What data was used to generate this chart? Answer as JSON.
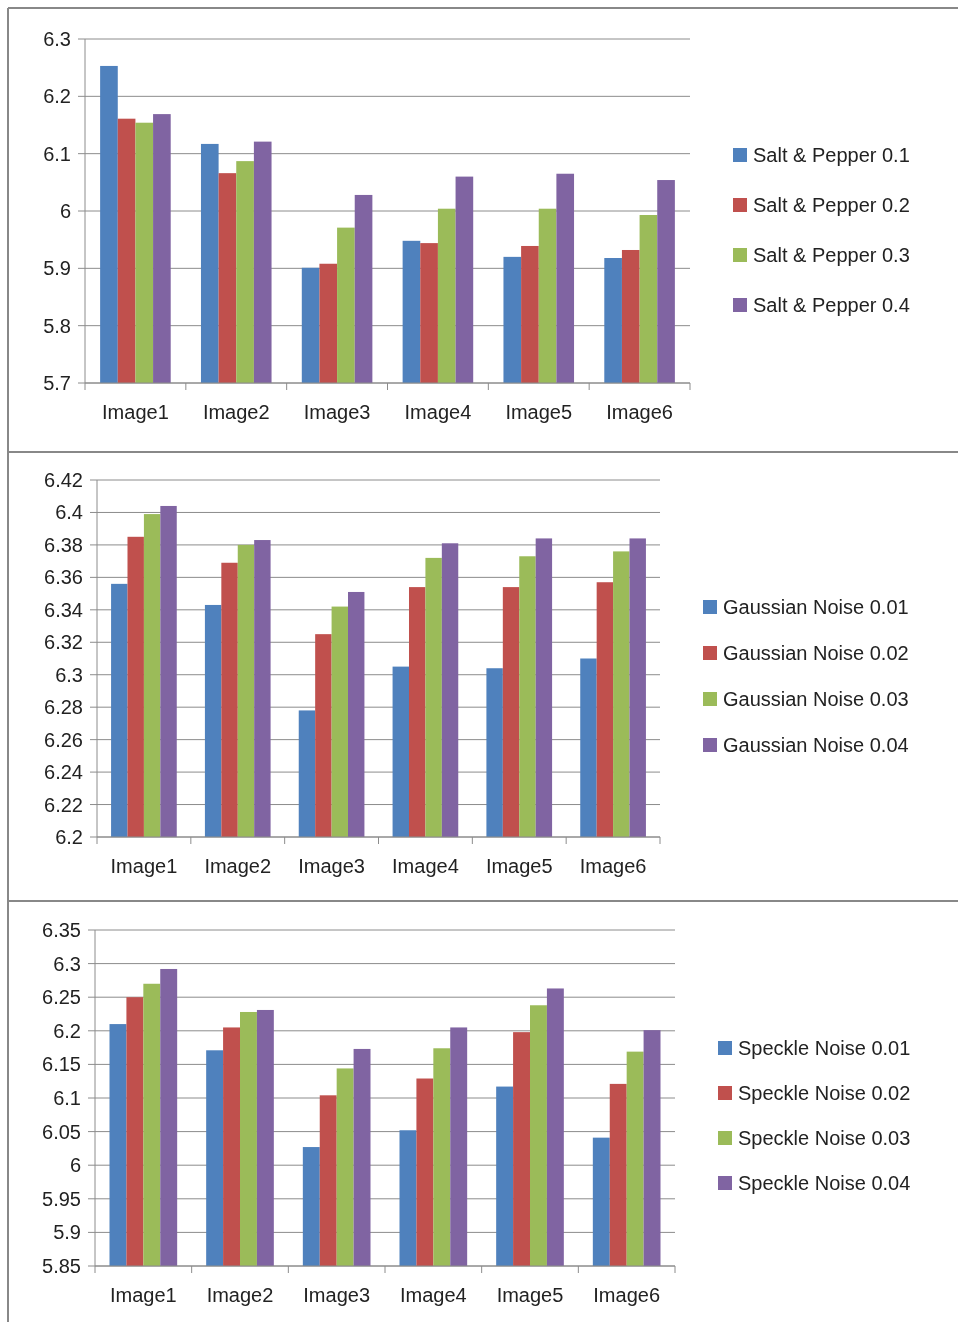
{
  "chart_data": [
    {
      "type": "bar",
      "categories": [
        "Image1",
        "Image2",
        "Image3",
        "Image4",
        "Image5",
        "Image6"
      ],
      "ylim": [
        5.7,
        6.3
      ],
      "yticks": [
        5.7,
        5.8,
        5.9,
        6,
        6.1,
        6.2,
        6.3
      ],
      "grid": "y",
      "legend": "right",
      "series": [
        {
          "name": "Salt & Pepper 0.1",
          "color": "#4f81bd",
          "values": [
            6.253,
            6.117,
            5.901,
            5.948,
            5.92,
            5.918
          ]
        },
        {
          "name": "Salt & Pepper 0.2",
          "color": "#c0504d",
          "values": [
            6.161,
            6.066,
            5.908,
            5.944,
            5.939,
            5.932
          ]
        },
        {
          "name": "Salt & Pepper 0.3",
          "color": "#9bbb59",
          "values": [
            6.154,
            6.087,
            5.971,
            6.004,
            6.004,
            5.993
          ]
        },
        {
          "name": "Salt & Pepper 0.4",
          "color": "#8064a2",
          "values": [
            6.169,
            6.121,
            6.028,
            6.06,
            6.065,
            6.054
          ]
        }
      ]
    },
    {
      "type": "bar",
      "categories": [
        "Image1",
        "Image2",
        "Image3",
        "Image4",
        "Image5",
        "Image6"
      ],
      "ylim": [
        6.2,
        6.42
      ],
      "yticks": [
        6.2,
        6.22,
        6.24,
        6.26,
        6.28,
        6.3,
        6.32,
        6.34,
        6.36,
        6.38,
        6.4,
        6.42
      ],
      "grid": "y",
      "legend": "right",
      "series": [
        {
          "name": "Gaussian Noise 0.01",
          "color": "#4f81bd",
          "values": [
            6.356,
            6.343,
            6.278,
            6.305,
            6.304,
            6.31
          ]
        },
        {
          "name": "Gaussian Noise 0.02",
          "color": "#c0504d",
          "values": [
            6.385,
            6.369,
            6.325,
            6.354,
            6.354,
            6.357
          ]
        },
        {
          "name": "Gaussian Noise 0.03",
          "color": "#9bbb59",
          "values": [
            6.399,
            6.38,
            6.342,
            6.372,
            6.373,
            6.376
          ]
        },
        {
          "name": "Gaussian Noise 0.04",
          "color": "#8064a2",
          "values": [
            6.404,
            6.383,
            6.351,
            6.381,
            6.384,
            6.384
          ]
        }
      ]
    },
    {
      "type": "bar",
      "categories": [
        "Image1",
        "Image2",
        "Image3",
        "Image4",
        "Image5",
        "Image6"
      ],
      "ylim": [
        5.85,
        6.35
      ],
      "yticks": [
        5.85,
        5.9,
        5.95,
        6,
        6.05,
        6.1,
        6.15,
        6.2,
        6.25,
        6.3,
        6.35
      ],
      "grid": "y",
      "legend": "right",
      "series": [
        {
          "name": "Speckle Noise 0.01",
          "color": "#4f81bd",
          "values": [
            6.21,
            6.171,
            6.027,
            6.052,
            6.117,
            6.041
          ]
        },
        {
          "name": "Speckle Noise 0.02",
          "color": "#c0504d",
          "values": [
            6.25,
            6.205,
            6.104,
            6.129,
            6.198,
            6.121
          ]
        },
        {
          "name": "Speckle Noise 0.03",
          "color": "#9bbb59",
          "values": [
            6.27,
            6.228,
            6.144,
            6.174,
            6.238,
            6.169
          ]
        },
        {
          "name": "Speckle Noise 0.04",
          "color": "#8064a2",
          "values": [
            6.292,
            6.231,
            6.173,
            6.205,
            6.263,
            6.201
          ]
        }
      ]
    }
  ]
}
